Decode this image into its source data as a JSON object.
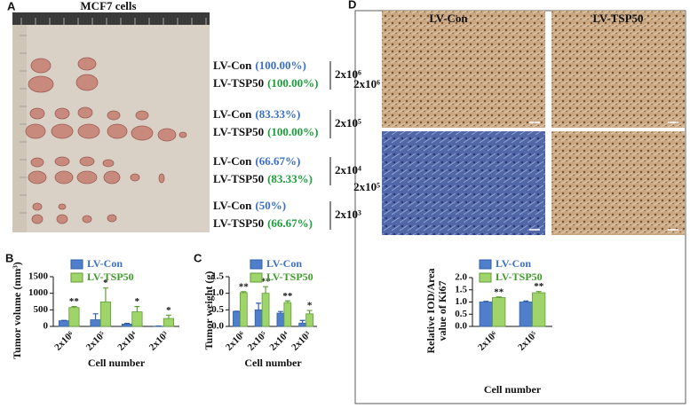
{
  "figure": {
    "panel_labels": [
      "A",
      "B",
      "C",
      "D"
    ],
    "panel_a": {
      "title": "MCF7 cells",
      "rows": [
        {
          "control": "LV-Con",
          "control_rate": "(100.00%)",
          "treated": "LV-TSP50",
          "treated_rate": "(100.00%)",
          "dose": "2x10⁶"
        },
        {
          "control": "LV-Con",
          "control_rate": "(83.33%)",
          "treated": "LV-TSP50",
          "treated_rate": "(100.00%)",
          "dose": "2x10⁵"
        },
        {
          "control": "LV-Con",
          "control_rate": "(66.67%)",
          "treated": "LV-TSP50",
          "treated_rate": "(83.33%)",
          "dose": "2x10⁴"
        },
        {
          "control": "LV-Con",
          "control_rate": "(50%)",
          "treated": "LV-TSP50",
          "treated_rate": "(66.67%)",
          "dose": "2x10³"
        }
      ]
    },
    "panel_d": {
      "columns": [
        "LV-Con",
        "LV-TSP50"
      ],
      "rows": [
        "2x10⁶",
        "2x10⁵"
      ]
    }
  },
  "chart_data": [
    {
      "type": "bar",
      "ylabel": "Tumor volume (mm³)",
      "xlabel": "Cell number",
      "categories": [
        "2x10⁶",
        "2x10⁵",
        "2x10⁴",
        "2x10³"
      ],
      "ylim": [
        0,
        1500
      ],
      "yticks": [
        0,
        500,
        1000,
        1500
      ],
      "legend": "top-left",
      "series": [
        {
          "name": "LV-Con",
          "color": "#4f7fcb",
          "values": [
            170,
            200,
            70,
            5
          ],
          "errors": [
            10,
            180,
            20,
            5
          ]
        },
        {
          "name": "LV-TSP50",
          "color": "#9fd46a",
          "values": [
            570,
            740,
            440,
            240
          ],
          "errors": [
            30,
            420,
            160,
            100
          ],
          "significance": [
            "**",
            "*",
            "*",
            "*"
          ]
        }
      ]
    },
    {
      "type": "bar",
      "ylabel": "Tumor weight (g)",
      "xlabel": "Cell number",
      "categories": [
        "2x10⁶",
        "2x10⁵",
        "2x10⁴",
        "2x10³"
      ],
      "ylim": [
        0,
        1.5
      ],
      "yticks": [
        {
          "value": 0,
          "label": "0.0"
        },
        0.5,
        {
          "value": 1,
          "label": "1.0"
        },
        1.5
      ],
      "legend": "top-left",
      "series": [
        {
          "name": "LV-Con",
          "color": "#4f7fcb",
          "values": [
            0.45,
            0.5,
            0.4,
            0.1
          ],
          "errors": [
            0.01,
            0.2,
            0.05,
            0.08
          ]
        },
        {
          "name": "LV-TSP50",
          "color": "#9fd46a",
          "values": [
            1.02,
            1.0,
            0.72,
            0.38
          ],
          "errors": [
            0.03,
            0.2,
            0.05,
            0.1
          ],
          "significance": [
            "**",
            "**",
            "**",
            "*"
          ]
        }
      ]
    },
    {
      "type": "bar",
      "ylabel": [
        "Relative IOD/Area",
        "value of Ki67"
      ],
      "xlabel": "Cell number",
      "categories": [
        "2x10⁶",
        "2x10⁵"
      ],
      "ylim": [
        0,
        2
      ],
      "yticks": [
        {
          "value": 0,
          "label": "0.0"
        },
        0.5,
        {
          "value": 1,
          "label": "1.0"
        },
        1.5,
        {
          "value": 2,
          "label": "2.0"
        }
      ],
      "legend": "top-left",
      "series": [
        {
          "name": "LV-Con",
          "color": "#4f7fcb",
          "values": [
            1.0,
            1.0
          ],
          "errors": [
            0.03,
            0.04
          ]
        },
        {
          "name": "LV-TSP50",
          "color": "#9fd46a",
          "values": [
            1.18,
            1.38
          ],
          "errors": [
            0.03,
            0.05
          ],
          "significance": [
            "**",
            "**"
          ]
        }
      ]
    }
  ]
}
